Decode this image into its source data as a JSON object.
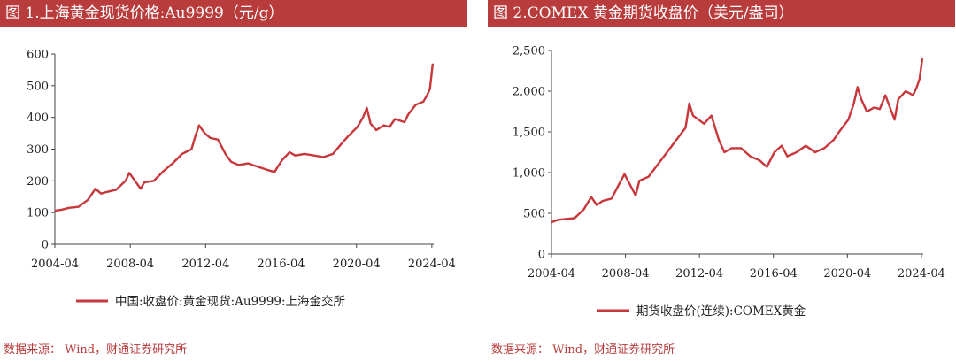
{
  "source_note": "数据来源： Wind，财通证券研究所",
  "colors": {
    "series": "#c8373b",
    "title_bg": "#b83c3c",
    "axis": "#444444"
  },
  "chart_data": [
    {
      "type": "line",
      "title": "图 1.上海黄金现货价格:Au9999（元/g）",
      "xlabel": "",
      "ylabel": "",
      "xlim": [
        2004.25,
        2024.35
      ],
      "ylim": [
        0,
        600
      ],
      "yticks": [
        0,
        100,
        200,
        300,
        400,
        500,
        600
      ],
      "ytick_labels": [
        "0",
        "100",
        "200",
        "300",
        "400",
        "500",
        "600"
      ],
      "xticks": [
        2004.25,
        2008.25,
        2012.25,
        2016.25,
        2020.25,
        2024.25
      ],
      "xtick_labels": [
        "2004-04",
        "2008-04",
        "2012-04",
        "2016-04",
        "2020-04",
        "2024-04"
      ],
      "grid": false,
      "legend_position": "bottom",
      "series": [
        {
          "name": "中国:收盘价:黄金现货:Au9999:上海金交所",
          "x": [
            2004.25,
            2004.6,
            2005.0,
            2005.5,
            2006.0,
            2006.4,
            2006.7,
            2007.0,
            2007.5,
            2008.0,
            2008.2,
            2008.5,
            2008.8,
            2009.0,
            2009.5,
            2010.0,
            2010.5,
            2011.0,
            2011.5,
            2011.7,
            2011.9,
            2012.2,
            2012.5,
            2012.9,
            2013.3,
            2013.6,
            2014.0,
            2014.5,
            2015.0,
            2015.5,
            2015.9,
            2016.3,
            2016.7,
            2017.0,
            2017.5,
            2018.0,
            2018.5,
            2019.0,
            2019.5,
            2019.8,
            2020.3,
            2020.6,
            2020.8,
            2021.0,
            2021.3,
            2021.7,
            2022.0,
            2022.3,
            2022.8,
            2023.0,
            2023.4,
            2023.8,
            2024.0,
            2024.15,
            2024.3
          ],
          "y": [
            106,
            109,
            115,
            118,
            140,
            175,
            160,
            165,
            172,
            200,
            225,
            200,
            175,
            195,
            200,
            230,
            255,
            285,
            300,
            340,
            375,
            350,
            335,
            330,
            285,
            260,
            250,
            255,
            245,
            235,
            228,
            265,
            290,
            280,
            285,
            280,
            275,
            285,
            320,
            340,
            370,
            400,
            430,
            380,
            360,
            375,
            370,
            395,
            385,
            410,
            440,
            450,
            470,
            490,
            570
          ]
        }
      ]
    },
    {
      "type": "line",
      "title": "图 2.COMEX 黄金期货收盘价（美元/盎司）",
      "xlabel": "",
      "ylabel": "",
      "xlim": [
        2004.25,
        2024.35
      ],
      "ylim": [
        0,
        2500
      ],
      "yticks": [
        0,
        500,
        1000,
        1500,
        2000,
        2500
      ],
      "ytick_labels": [
        "0",
        "500",
        "1,000",
        "1,500",
        "2,000",
        "2,500"
      ],
      "xticks": [
        2004.25,
        2008.25,
        2012.25,
        2016.25,
        2020.25,
        2024.25
      ],
      "xtick_labels": [
        "2004-04",
        "2008-04",
        "2012-04",
        "2016-04",
        "2020-04",
        "2024-04"
      ],
      "grid": false,
      "legend_position": "bottom",
      "series": [
        {
          "name": "期货收盘价(连续):COMEX黄金",
          "x": [
            2004.25,
            2004.6,
            2005.0,
            2005.5,
            2006.0,
            2006.4,
            2006.7,
            2007.0,
            2007.5,
            2008.0,
            2008.2,
            2008.5,
            2008.8,
            2009.0,
            2009.5,
            2010.0,
            2010.5,
            2011.0,
            2011.5,
            2011.7,
            2011.9,
            2012.2,
            2012.5,
            2012.9,
            2013.3,
            2013.6,
            2014.0,
            2014.5,
            2015.0,
            2015.5,
            2015.9,
            2016.3,
            2016.7,
            2017.0,
            2017.5,
            2018.0,
            2018.5,
            2019.0,
            2019.5,
            2019.8,
            2020.3,
            2020.6,
            2020.8,
            2021.0,
            2021.3,
            2021.7,
            2022.0,
            2022.3,
            2022.8,
            2023.0,
            2023.4,
            2023.8,
            2024.0,
            2024.15,
            2024.3
          ],
          "y": [
            390,
            420,
            430,
            440,
            550,
            700,
            600,
            650,
            680,
            900,
            980,
            850,
            720,
            900,
            950,
            1100,
            1250,
            1400,
            1550,
            1850,
            1700,
            1650,
            1600,
            1700,
            1400,
            1250,
            1300,
            1300,
            1200,
            1150,
            1070,
            1250,
            1330,
            1200,
            1250,
            1330,
            1250,
            1300,
            1400,
            1500,
            1650,
            1850,
            2050,
            1900,
            1750,
            1800,
            1780,
            1950,
            1650,
            1900,
            2000,
            1950,
            2050,
            2150,
            2400
          ]
        }
      ]
    }
  ]
}
